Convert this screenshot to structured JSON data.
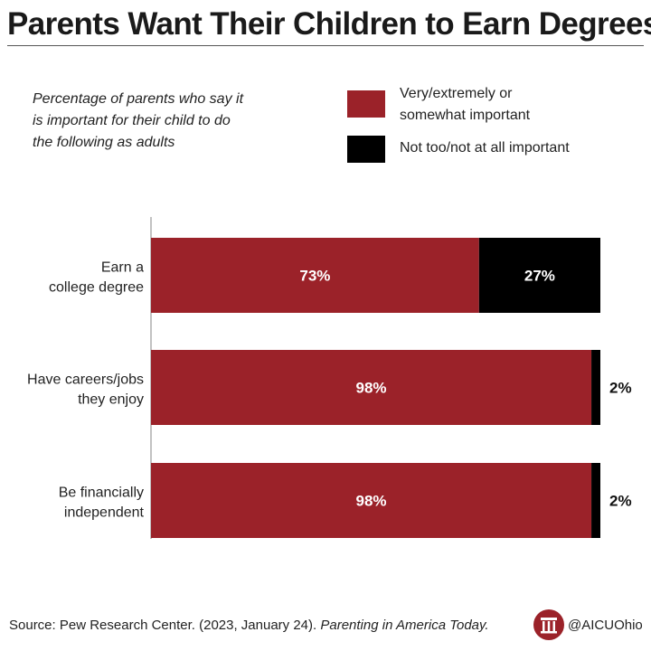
{
  "title": "Parents Want Their Children to Earn Degrees",
  "subtitle_lines": [
    "Percentage of parents who say it",
    "is important for their child to do",
    "the following as adults"
  ],
  "legend": [
    {
      "label_lines": [
        "Very/extremely or",
        "somewhat important"
      ],
      "color": "#9b2229"
    },
    {
      "label_lines": [
        "Not too/not at all important"
      ],
      "color": "#000000"
    }
  ],
  "chart_data": {
    "type": "bar",
    "orientation": "horizontal",
    "stacked": true,
    "categories": [
      [
        "Earn a",
        "college degree"
      ],
      [
        "Have careers/jobs",
        "they enjoy"
      ],
      [
        "Be financially",
        "independent"
      ]
    ],
    "series": [
      {
        "name": "Very/extremely or somewhat important",
        "values": [
          73,
          98,
          98
        ],
        "labels": [
          "73%",
          "98%",
          "98%"
        ],
        "color": "#9b2229"
      },
      {
        "name": "Not too/not at all important",
        "values": [
          27,
          2,
          2
        ],
        "labels": [
          "27%",
          "2%",
          "2%"
        ],
        "color": "#000000"
      }
    ],
    "xlim": [
      0,
      100
    ]
  },
  "source": {
    "prefix": "Source: Pew Research Center. (2023, January 24). ",
    "publication": "Parenting in America Today."
  },
  "brand": {
    "handle": "@AICUOhio",
    "logo_icon": "columns-logo-icon"
  }
}
